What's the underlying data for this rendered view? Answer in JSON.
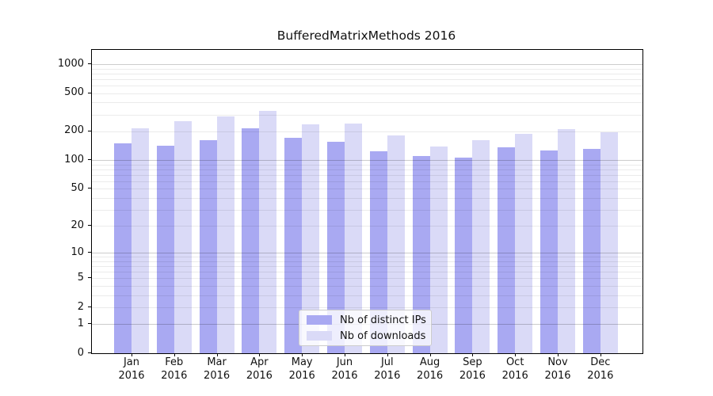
{
  "page": {
    "background": "#ffffff"
  },
  "chart_data": {
    "type": "bar",
    "title": "BufferedMatrixMethods 2016",
    "categories": [
      "Jan 2016",
      "Feb 2016",
      "Mar 2016",
      "Apr 2016",
      "May 2016",
      "Jun 2016",
      "Jul 2016",
      "Aug 2016",
      "Sep 2016",
      "Oct 2016",
      "Nov 2016",
      "Dec 2016"
    ],
    "series": [
      {
        "name": "Nb of distinct IPs",
        "color": "#a9a9f2",
        "values": [
          150,
          142,
          161,
          216,
          170,
          156,
          124,
          110,
          107,
          136,
          126,
          132
        ]
      },
      {
        "name": "Nb of downloads",
        "color": "#dadaf7",
        "values": [
          215,
          255,
          288,
          330,
          236,
          242,
          180,
          140,
          162,
          190,
          210,
          195
        ]
      }
    ],
    "y_axis": {
      "scale": "log10(1+value)",
      "ticks": [
        0,
        1,
        2,
        5,
        10,
        20,
        50,
        100,
        200,
        500,
        1000
      ],
      "major_gridlines": [
        1,
        10,
        100,
        1000
      ],
      "minor_gridline_steps": [
        2,
        3,
        4,
        5,
        6,
        7,
        8,
        9
      ],
      "top_value": 1405
    },
    "x_axis": {
      "tick_position": "group-center",
      "label_lines": 2
    },
    "legend": {
      "position": "bottom-center",
      "items": [
        "Nb of distinct IPs",
        "Nb of downloads"
      ]
    },
    "grid": true
  },
  "colors": {
    "axis": "#000000",
    "text": "#111111",
    "major_grid": "rgba(0,0,0,0.20)",
    "minor_grid": "rgba(0,0,0,0.08)",
    "legend_border": "#cccccc",
    "legend_bg": "rgba(255,255,255,0.8)"
  }
}
